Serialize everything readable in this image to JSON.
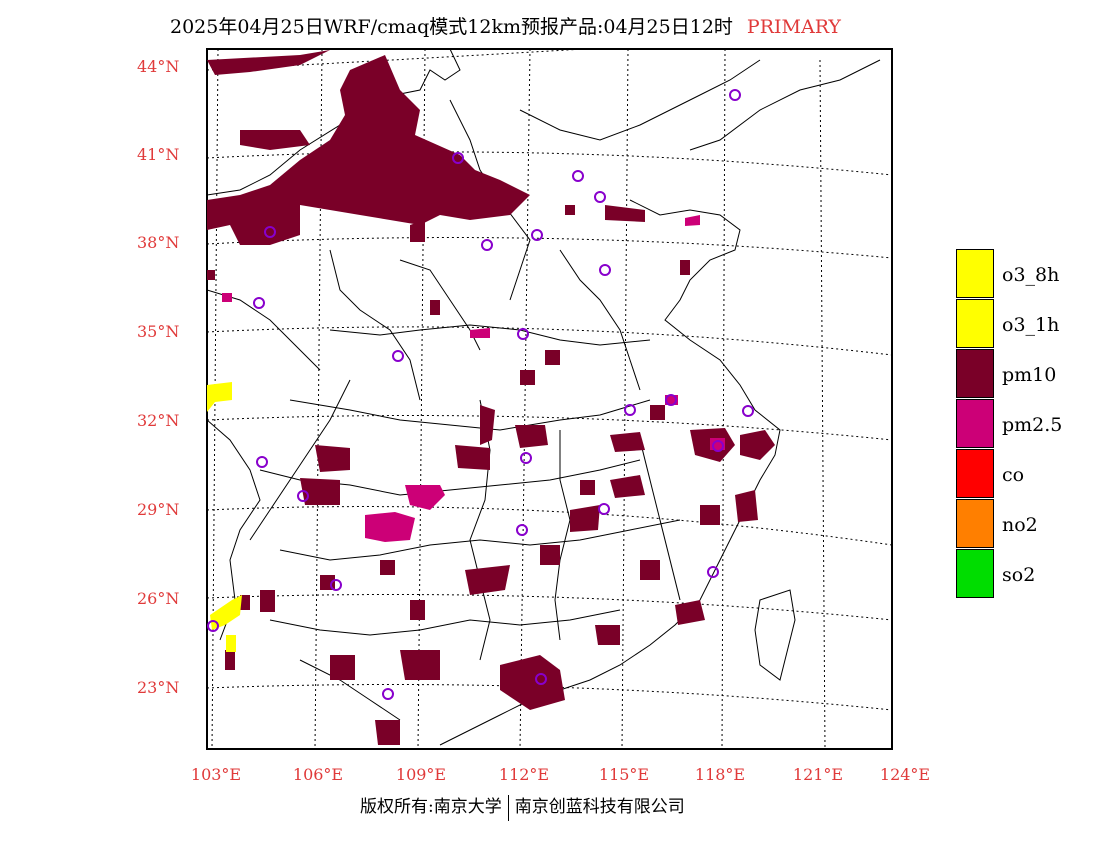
{
  "title": {
    "main": "2025年04月25日WRF/cmaq模式12km预报产品:04月25日12时",
    "tag": "PRIMARY"
  },
  "lat_labels": [
    "44°N",
    "41°N",
    "38°N",
    "35°N",
    "32°N",
    "29°N",
    "26°N",
    "23°N"
  ],
  "lon_labels": [
    "103°E",
    "106°E",
    "109°E",
    "112°E",
    "115°E",
    "118°E",
    "121°E",
    "124°E"
  ],
  "legend": [
    {
      "label": "o3_8h",
      "color": "#ffff00"
    },
    {
      "label": "o3_1h",
      "color": "#ffff00"
    },
    {
      "label": "pm10",
      "color": "#7a0028"
    },
    {
      "label": "pm2.5",
      "color": "#cc0077"
    },
    {
      "label": "co",
      "color": "#ff0000"
    },
    {
      "label": "no2",
      "color": "#ff7f00"
    },
    {
      "label": "so2",
      "color": "#00dd00"
    }
  ],
  "copyright": {
    "left": "版权所有:南京大学",
    "right": "南京创蓝科技有限公司"
  },
  "colors": {
    "label_red": "#e03a3a",
    "pm10": "#7a0028",
    "pm25": "#cc0077",
    "o3": "#ffff00",
    "station": "#8800cc"
  }
}
